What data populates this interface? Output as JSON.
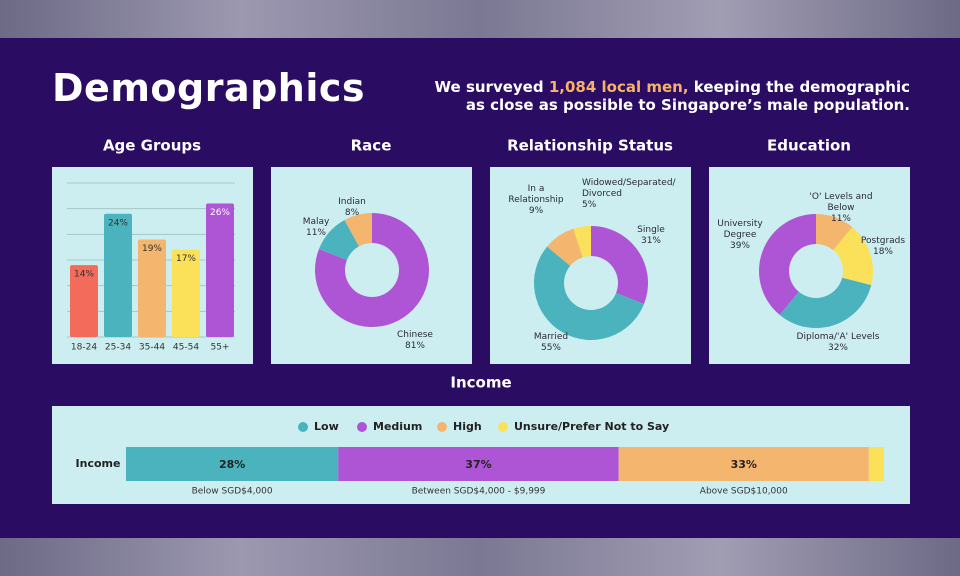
{
  "header": {
    "title": "Demographics",
    "subtitle": [
      "We surveyed",
      "1,084 local men,",
      "keeping the demographic",
      "as close as possible to Singapore’s male population."
    ]
  },
  "chart_data": [
    {
      "type": "bar",
      "title": "Age Groups",
      "categories": [
        "18-24",
        "25-34",
        "35-44",
        "45-54",
        "55+"
      ],
      "values": [
        14,
        24,
        19,
        17,
        26
      ],
      "value_labels": [
        "14%",
        "24%",
        "19%",
        "17%",
        "26%"
      ],
      "colors": [
        "#f26b5b",
        "#4bb3bd",
        "#f4b66f",
        "#fbe05a",
        "#ad55d4"
      ],
      "ylim": [
        0,
        30
      ],
      "yticks": [
        0,
        5,
        10,
        15,
        20,
        25,
        30
      ],
      "grid": true
    },
    {
      "type": "donut",
      "title": "Race",
      "categories": [
        "Chinese",
        "Malay",
        "Indian"
      ],
      "values": [
        81,
        11,
        8
      ],
      "value_labels": [
        "81%",
        "11%",
        "8%"
      ],
      "colors": [
        "#ad55d4",
        "#4bb3bd",
        "#f4b66f"
      ]
    },
    {
      "type": "donut",
      "title": "Relationship Status",
      "categories": [
        "Single",
        "Married",
        "In a Relationship",
        "Widowed/Separated/ Divorced"
      ],
      "values": [
        31,
        55,
        9,
        5
      ],
      "value_labels": [
        "31%",
        "55%",
        "9%",
        "5%"
      ],
      "colors": [
        "#ad55d4",
        "#4bb3bd",
        "#f4b66f",
        "#fbe05a"
      ]
    },
    {
      "type": "donut",
      "title": "Education",
      "categories": [
        "'O' Levels and Below",
        "Postgrads",
        "Diploma/'A' Levels",
        "University Degree"
      ],
      "values": [
        11,
        18,
        32,
        39
      ],
      "value_labels": [
        "11%",
        "18%",
        "32%",
        "39%"
      ],
      "colors": [
        "#f4b66f",
        "#fbe05a",
        "#4bb3bd",
        "#ad55d4"
      ]
    },
    {
      "type": "stacked_hbar",
      "title": "Income",
      "categories": [
        "Income"
      ],
      "xlim": [
        0,
        100
      ],
      "series": [
        {
          "name": "Low",
          "color": "#4bb3bd",
          "values": [
            28
          ],
          "value_labels": [
            "28%"
          ],
          "note": "Below SGD$4,000"
        },
        {
          "name": "Medium",
          "color": "#ad55d4",
          "values": [
            37
          ],
          "value_labels": [
            "37%"
          ],
          "note": "Between SGD$4,000 - $9,999"
        },
        {
          "name": "High",
          "color": "#f4b66f",
          "values": [
            33
          ],
          "value_labels": [
            "33%"
          ],
          "note": "Above SGD$10,000"
        },
        {
          "name": "Unsure/Prefer Not to Say",
          "color": "#fbe05a",
          "values": [
            2
          ]
        }
      ]
    }
  ]
}
